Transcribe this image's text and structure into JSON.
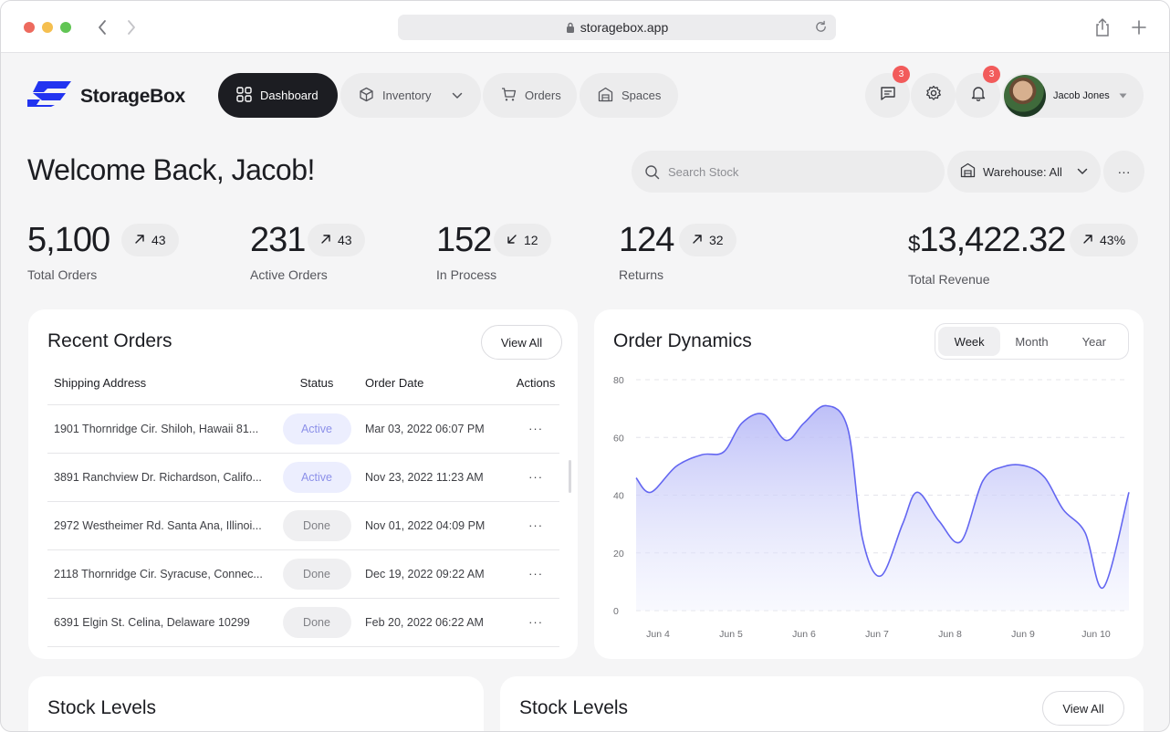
{
  "browser": {
    "url": "storagebox.app"
  },
  "brand": {
    "name": "StorageBox",
    "accent": "#2234f0"
  },
  "nav": {
    "dashboard": "Dashboard",
    "inventory": "Inventory",
    "orders": "Orders",
    "spaces": "Spaces"
  },
  "header": {
    "messages_badge": "3",
    "notifications_badge": "3",
    "user_name": "Jacob Jones"
  },
  "welcome": "Welcome Back, Jacob!",
  "search": {
    "placeholder": "Search Stock"
  },
  "warehouse": {
    "label": "Warehouse: All"
  },
  "more": "···",
  "stats": [
    {
      "value": "5,100",
      "label": "Total Orders",
      "delta": "43",
      "direction": "up"
    },
    {
      "value": "231",
      "label": "Active Orders",
      "delta": "43",
      "direction": "up"
    },
    {
      "value": "152",
      "label": "In Process",
      "delta": "12",
      "direction": "down"
    },
    {
      "value": "124",
      "label": "Returns",
      "delta": "32",
      "direction": "up"
    }
  ],
  "revenue": {
    "currency": "$",
    "value": "13,422.32",
    "label": "Total Revenue",
    "delta": "43%",
    "direction": "up"
  },
  "recent_orders": {
    "title": "Recent Orders",
    "view_all": "View All",
    "columns": [
      "Shipping Address",
      "Status",
      "Order Date",
      "Actions"
    ],
    "rows": [
      {
        "address": "1901 Thornridge Cir. Shiloh, Hawaii 81...",
        "status": "Active",
        "date": "Mar 03, 2022 06:07 PM",
        "action": "···"
      },
      {
        "address": "3891 Ranchview Dr. Richardson, Califo...",
        "status": "Active",
        "date": "Nov 23, 2022 11:23 AM",
        "action": "···"
      },
      {
        "address": "2972 Westheimer Rd. Santa Ana, Illinoi...",
        "status": "Done",
        "date": "Nov 01, 2022 04:09 PM",
        "action": "···"
      },
      {
        "address": "2118 Thornridge Cir. Syracuse, Connec...",
        "status": "Done",
        "date": "Dec 19, 2022 09:22 AM",
        "action": "···"
      },
      {
        "address": "6391 Elgin St. Celina, Delaware 10299",
        "status": "Done",
        "date": "Feb 20, 2022 06:22 AM",
        "action": "···"
      }
    ]
  },
  "order_dynamics": {
    "title": "Order Dynamics",
    "periods": [
      "Week",
      "Month",
      "Year"
    ],
    "selected_period": "Week"
  },
  "chart_data": {
    "type": "area",
    "title": "Order Dynamics",
    "ylim": [
      0,
      80
    ],
    "yticks": [
      0,
      20,
      40,
      60,
      80
    ],
    "xticks": [
      "Jun 4",
      "Jun 5",
      "Jun 6",
      "Jun 7",
      "Jun 8",
      "Jun 9",
      "Jun 10"
    ],
    "x": [
      3.7,
      3.9,
      4.25,
      4.6,
      4.9,
      5.15,
      5.45,
      5.75,
      6.0,
      6.3,
      6.6,
      6.8,
      7.05,
      7.35,
      7.55,
      7.85,
      8.15,
      8.45,
      8.75,
      9.05,
      9.3,
      9.55,
      9.85,
      10.1,
      10.45
    ],
    "y": [
      46,
      41,
      50,
      54,
      55,
      65,
      68,
      59,
      65,
      71,
      63,
      25,
      12,
      30,
      41,
      31,
      24,
      45,
      50,
      50,
      46,
      35,
      27,
      8,
      41
    ],
    "grid": true,
    "color": "#6366f1"
  },
  "stock_left": {
    "title": "Stock Levels"
  },
  "stock_right": {
    "title": "Stock Levels",
    "view_all": "View All"
  }
}
